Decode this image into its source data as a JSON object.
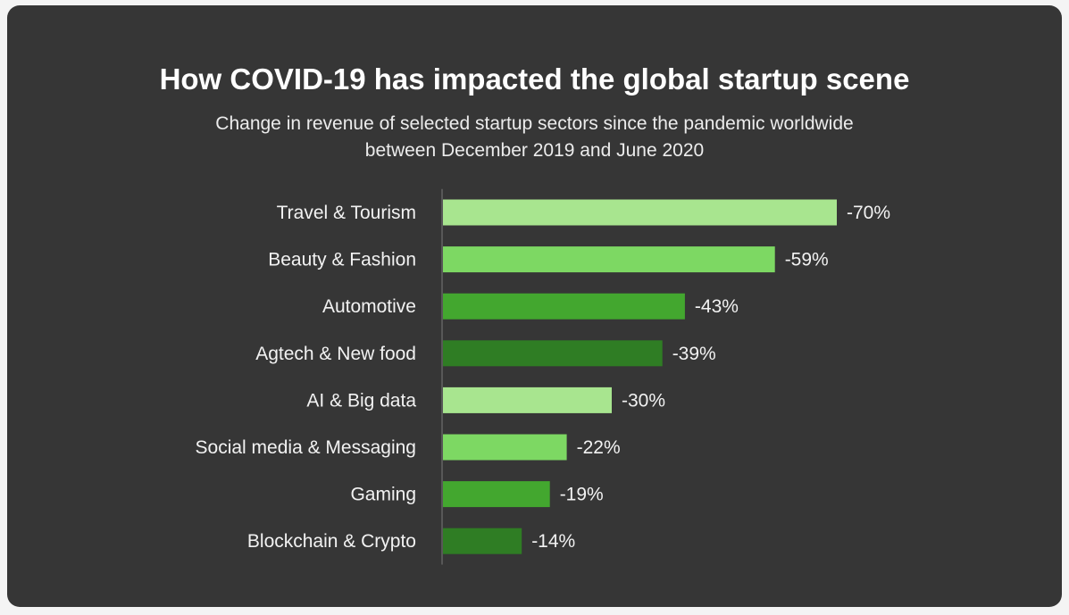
{
  "title": "How COVID-19 has impacted the global startup scene",
  "subtitle_line1": "Change in revenue of selected startup sectors since the pandemic worldwide",
  "subtitle_line2": "between December 2019 and June 2020",
  "colors": {
    "background": "#363636",
    "bar_light": "#a8e58f",
    "bar_mid_light": "#7dd863",
    "bar_mid": "#43a72f",
    "bar_dark": "#2f7d24",
    "text": "#ffffff"
  },
  "chart_data": {
    "type": "bar",
    "orientation": "horizontal",
    "categories": [
      "Travel & Tourism",
      "Beauty & Fashion",
      "Automotive",
      "Agtech & New food",
      "AI & Big data",
      "Social media & Messaging",
      "Gaming",
      "Blockchain & Crypto"
    ],
    "values": [
      -70,
      -59,
      -43,
      -39,
      -30,
      -22,
      -19,
      -14
    ],
    "value_labels": [
      "-70%",
      "-59%",
      "-43%",
      "-39%",
      "-30%",
      "-22%",
      "-19%",
      "-14%"
    ],
    "bar_colors": [
      "#a8e58f",
      "#7dd863",
      "#43a72f",
      "#2f7d24",
      "#a8e58f",
      "#7dd863",
      "#43a72f",
      "#2f7d24"
    ],
    "title": "How COVID-19 has impacted the global startup scene",
    "xlabel": "",
    "ylabel": "",
    "xlim": [
      0,
      -70
    ],
    "grid": false,
    "legend": "none"
  }
}
